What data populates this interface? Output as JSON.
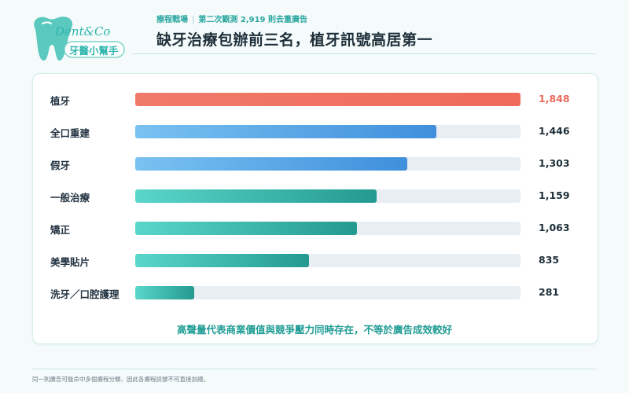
{
  "brand": {
    "script": "Dent&Co",
    "name": "牙醫小幫手"
  },
  "header": {
    "section": "療程戰場",
    "meta": "第二次觀測 2,919 則去重廣告",
    "title": "缺牙治療包辦前三名，植牙訊號高居第一"
  },
  "colors": {
    "highlight_bar": "#f07262",
    "highlight_text": "#ea6a5b",
    "blue_bar": "#4fa3e6",
    "teal_bar": "#36c3b7",
    "track": "#e9eef3"
  },
  "chart_data": {
    "type": "bar",
    "orientation": "horizontal",
    "categories": [
      "植牙",
      "全口重建",
      "假牙",
      "一般治療",
      "矯正",
      "美學貼片",
      "洗牙／口腔護理"
    ],
    "values": [
      1848,
      1446,
      1303,
      1159,
      1063,
      835,
      281
    ],
    "value_labels": [
      "1,848",
      "1,446",
      "1,303",
      "1,159",
      "1,063",
      "835",
      "281"
    ],
    "bar_colors": [
      "highlight",
      "blue",
      "blue",
      "teal",
      "teal",
      "teal",
      "teal"
    ],
    "xlim": [
      0,
      1848
    ],
    "grid": false,
    "legend": "none"
  },
  "footnote": "高聲量代表商業價值與競爭壓力同時存在，不等於廣告成效較好",
  "note": "同一則廣告可能命中多個療程分類，因此各療程訊號不可直接加總。"
}
